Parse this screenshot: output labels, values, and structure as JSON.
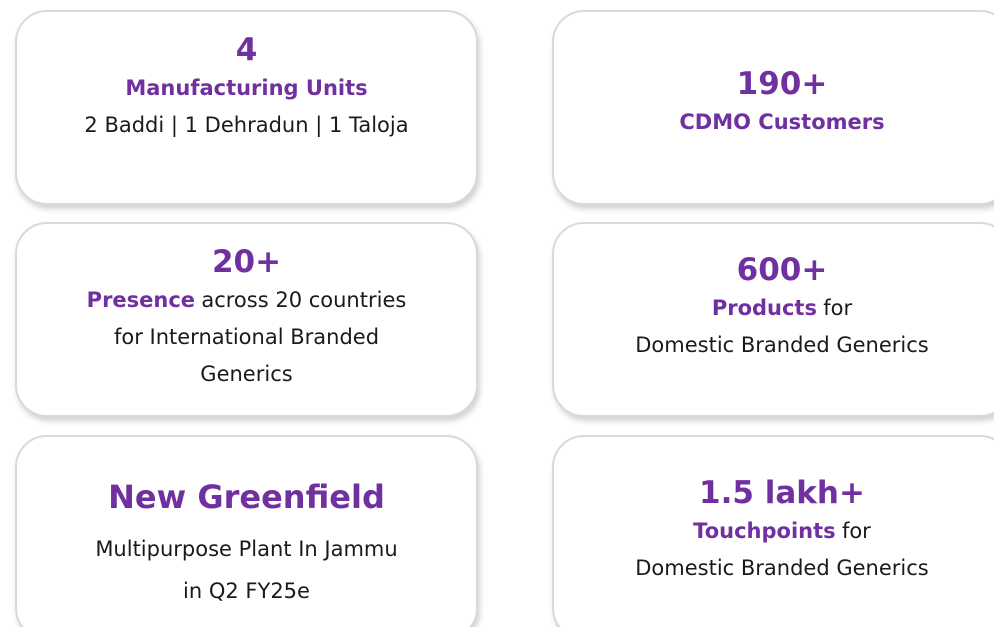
{
  "cards": [
    {
      "headline": "4",
      "lines": [
        {
          "label": "Manufacturing Units"
        },
        {
          "text": "2 Baddi | 1 Dehradun | 1 Taloja"
        }
      ]
    },
    {
      "headline": "190+",
      "lines": [
        {
          "label": "CDMO Customers"
        }
      ]
    },
    {
      "headline": "20+",
      "lines": [
        {
          "label": "Presence",
          "text": "across 20 countries"
        },
        {
          "text": "for International Branded"
        },
        {
          "text": "Generics"
        }
      ]
    },
    {
      "headline": "600+",
      "lines": [
        {
          "label": "Products",
          "text": "for"
        },
        {
          "text": "Domestic Branded Generics"
        }
      ]
    },
    {
      "headline": "New Greenfield",
      "lines": [
        {
          "text": "Multipurpose Plant In Jammu"
        },
        {
          "text": "in Q2 FY25e"
        }
      ]
    },
    {
      "headline": "1.5 lakh+",
      "lines": [
        {
          "label": "Touchpoints",
          "text": "for"
        },
        {
          "text": "Domestic Branded Generics"
        }
      ]
    }
  ]
}
